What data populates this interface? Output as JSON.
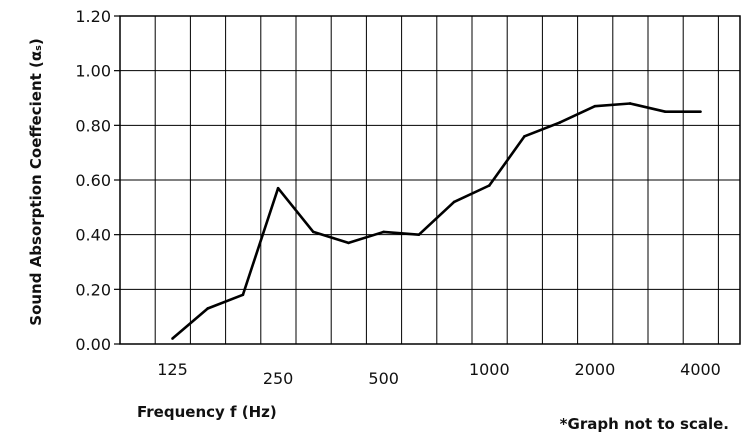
{
  "chart_data": {
    "type": "line",
    "xlabel": "Frequency f (Hz)",
    "ylabel": "Sound Absorption Coeffecient (αₛ)",
    "note": "*Graph not to scale.",
    "ylim": [
      0.0,
      1.2
    ],
    "grid": true,
    "y_ticks": [
      "0.00",
      "0.20",
      "0.40",
      "0.60",
      "0.80",
      "1.00",
      "1.20"
    ],
    "x_tick_labels": [
      "125",
      "250",
      "500",
      "1000",
      "2000",
      "4000"
    ],
    "x": [
      "125",
      "160",
      "200",
      "250",
      "315",
      "400",
      "500",
      "630",
      "800",
      "1000",
      "1250",
      "1600",
      "2000",
      "2500",
      "3150",
      "4000"
    ],
    "series": [
      {
        "values": [
          0.02,
          0.13,
          0.18,
          0.57,
          0.41,
          0.37,
          0.41,
          0.4,
          0.52,
          0.58,
          0.76,
          0.81,
          0.87,
          0.88,
          0.85,
          0.85
        ],
        "color": "#000000"
      }
    ]
  }
}
